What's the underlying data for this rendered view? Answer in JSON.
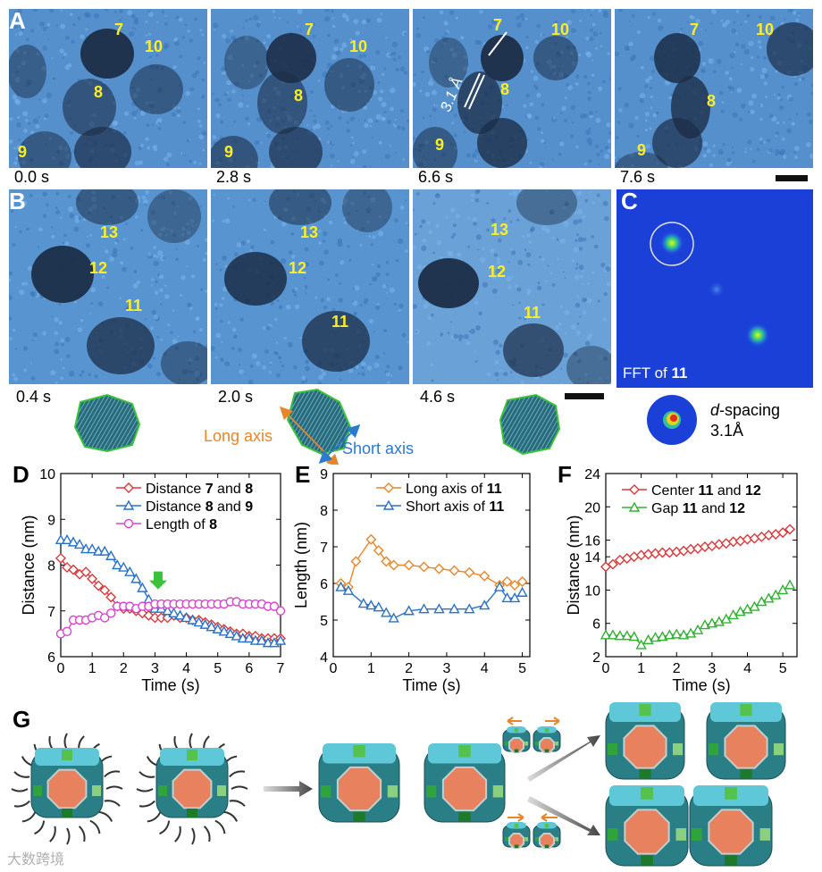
{
  "panel_a": {
    "letter": "A",
    "frames": [
      {
        "time": "0.0 s",
        "labels": [
          "7",
          "10",
          "8",
          "9"
        ]
      },
      {
        "time": "2.8 s",
        "labels": [
          "7",
          "10",
          "8",
          "9"
        ]
      },
      {
        "time": "6.6 s",
        "labels": [
          "7",
          "10",
          "8",
          "9"
        ],
        "lattice_label": "3.1 Å"
      },
      {
        "time": "7.6 s",
        "labels": [
          "7",
          "10",
          "8",
          "9"
        ]
      }
    ]
  },
  "panel_b": {
    "letter": "B",
    "frames": [
      {
        "time": "0.4 s",
        "labels": [
          "13",
          "12",
          "11"
        ]
      },
      {
        "time": "2.0 s",
        "labels": [
          "13",
          "12",
          "11"
        ]
      },
      {
        "time": "4.6 s",
        "labels": [
          "13",
          "12",
          "11"
        ]
      }
    ],
    "long_axis": "Long axis",
    "short_axis": "Short axis",
    "colors": {
      "long": "#e8862a",
      "short": "#2a7ad0"
    }
  },
  "panel_c": {
    "letter": "C",
    "fft_caption_prefix": "FFT of ",
    "fft_caption_particle": "11",
    "d_spacing_italic": "d",
    "d_spacing_rest": "-spacing",
    "d_spacing_value": "3.1Å"
  },
  "panel_d": {
    "letter": "D"
  },
  "panel_e": {
    "letter": "E"
  },
  "panel_f": {
    "letter": "F"
  },
  "panel_g": {
    "letter": "G"
  },
  "watermark": "大数跨境",
  "chart_data": [
    {
      "type": "line",
      "panel": "D",
      "xlabel": "Time (s)",
      "ylabel": "Distance (nm)",
      "xlim": [
        0,
        7
      ],
      "ylim": [
        6,
        10
      ],
      "xticks": [
        0,
        1,
        2,
        3,
        4,
        5,
        6,
        7
      ],
      "yticks": [
        6,
        7,
        8,
        9,
        10
      ],
      "series": [
        {
          "name": "Distance 7 and 8",
          "legend_pre": "Distance ",
          "legend_a": "7",
          "legend_mid": " and ",
          "legend_b": "8",
          "color": "#d8383a",
          "marker": "diamond",
          "x": [
            0,
            0.2,
            0.4,
            0.6,
            0.8,
            1.0,
            1.2,
            1.4,
            1.6,
            1.8,
            2.0,
            2.2,
            2.4,
            2.6,
            2.8,
            3.0,
            3.2,
            3.4,
            3.6,
            3.8,
            4.0,
            4.2,
            4.4,
            4.6,
            4.8,
            5.0,
            5.2,
            5.4,
            5.6,
            5.8,
            6.0,
            6.2,
            6.4,
            6.6,
            6.8,
            7.0
          ],
          "y": [
            8.15,
            7.95,
            7.9,
            7.8,
            7.85,
            7.7,
            7.55,
            7.45,
            7.3,
            7.1,
            7.05,
            7.05,
            7.0,
            6.95,
            6.9,
            6.85,
            6.85,
            6.85,
            6.9,
            6.85,
            6.85,
            6.8,
            6.8,
            6.75,
            6.7,
            6.65,
            6.6,
            6.55,
            6.5,
            6.5,
            6.45,
            6.45,
            6.4,
            6.4,
            6.4,
            6.4
          ]
        },
        {
          "name": "Distance 8 and 9",
          "legend_pre": "Distance ",
          "legend_a": "8",
          "legend_mid": " and ",
          "legend_b": "9",
          "color": "#2a72c8",
          "marker": "triangle",
          "x": [
            0,
            0.2,
            0.4,
            0.6,
            0.8,
            1.0,
            1.2,
            1.4,
            1.6,
            1.8,
            2.0,
            2.2,
            2.4,
            2.6,
            2.8,
            3.0,
            3.2,
            3.4,
            3.6,
            3.8,
            4.0,
            4.2,
            4.4,
            4.6,
            4.8,
            5.0,
            5.2,
            5.4,
            5.6,
            5.8,
            6.0,
            6.2,
            6.4,
            6.6,
            6.8,
            7.0
          ],
          "y": [
            8.55,
            8.55,
            8.5,
            8.45,
            8.35,
            8.35,
            8.3,
            8.3,
            8.2,
            8.0,
            7.95,
            7.85,
            7.7,
            7.5,
            7.25,
            7.05,
            7.05,
            7.0,
            6.95,
            6.9,
            6.85,
            6.8,
            6.75,
            6.7,
            6.65,
            6.6,
            6.55,
            6.5,
            6.45,
            6.4,
            6.4,
            6.35,
            6.35,
            6.3,
            6.3,
            6.35
          ]
        },
        {
          "name": "Length of 8",
          "legend_pre": "Length of ",
          "legend_a": "8",
          "legend_mid": "",
          "legend_b": "",
          "color": "#d844d0",
          "marker": "circle",
          "x": [
            0,
            0.2,
            0.4,
            0.6,
            0.8,
            1.0,
            1.2,
            1.4,
            1.6,
            1.8,
            2.0,
            2.2,
            2.4,
            2.6,
            2.8,
            3.0,
            3.2,
            3.4,
            3.6,
            3.8,
            4.0,
            4.2,
            4.4,
            4.6,
            4.8,
            5.0,
            5.2,
            5.4,
            5.6,
            5.8,
            6.0,
            6.2,
            6.4,
            6.6,
            6.8,
            7.0
          ],
          "y": [
            6.5,
            6.55,
            6.8,
            6.8,
            6.8,
            6.85,
            6.9,
            6.85,
            6.95,
            7.1,
            7.1,
            7.1,
            7.05,
            7.1,
            7.1,
            7.15,
            7.15,
            7.15,
            7.15,
            7.15,
            7.15,
            7.15,
            7.15,
            7.15,
            7.15,
            7.15,
            7.15,
            7.2,
            7.2,
            7.15,
            7.15,
            7.15,
            7.15,
            7.1,
            7.1,
            7.0
          ]
        }
      ],
      "annotation": {
        "type": "arrow",
        "x": 3.1,
        "y": 7.55,
        "color": "#3ac23a"
      }
    },
    {
      "type": "line",
      "panel": "E",
      "xlabel": "Time (s)",
      "ylabel": "Length (nm)",
      "xlim": [
        0,
        5.2
      ],
      "ylim": [
        4,
        9
      ],
      "xticks": [
        0,
        1,
        2,
        3,
        4,
        5
      ],
      "yticks": [
        4,
        5,
        6,
        7,
        8,
        9
      ],
      "series": [
        {
          "name": "Long axis of 11",
          "legend_pre": "Long axis of ",
          "legend_a": "11",
          "legend_mid": "",
          "legend_b": "",
          "color": "#e8862a",
          "marker": "diamond",
          "x": [
            0.2,
            0.4,
            0.6,
            1.0,
            1.2,
            1.4,
            1.6,
            2.0,
            2.4,
            2.8,
            3.2,
            3.6,
            4.0,
            4.4,
            4.6,
            4.8,
            5.0
          ],
          "y": [
            6.0,
            5.9,
            6.6,
            7.2,
            6.9,
            6.6,
            6.5,
            6.5,
            6.45,
            6.4,
            6.35,
            6.3,
            6.2,
            5.95,
            6.05,
            5.95,
            6.05
          ]
        },
        {
          "name": "Short axis of 11",
          "legend_pre": "Short axis of ",
          "legend_a": "11",
          "legend_mid": "",
          "legend_b": "",
          "color": "#2a72c8",
          "marker": "triangle",
          "x": [
            0.2,
            0.4,
            0.8,
            1.0,
            1.2,
            1.4,
            1.6,
            2.0,
            2.4,
            2.8,
            3.2,
            3.6,
            4.0,
            4.4,
            4.6,
            4.8,
            5.0
          ],
          "y": [
            5.9,
            5.8,
            5.45,
            5.4,
            5.35,
            5.2,
            5.05,
            5.25,
            5.3,
            5.3,
            5.3,
            5.3,
            5.4,
            5.9,
            5.6,
            5.6,
            5.75
          ]
        }
      ]
    },
    {
      "type": "line",
      "panel": "F",
      "xlabel": "Time (s)",
      "ylabel": "Distance (nm)",
      "xlim": [
        0,
        5.4
      ],
      "ylim": [
        2,
        24
      ],
      "xticks": [
        0,
        1,
        2,
        3,
        4,
        5
      ],
      "yticks": [
        2,
        6,
        10,
        14,
        16,
        20,
        24
      ],
      "series": [
        {
          "name": "Center 11 and 12",
          "legend_pre": "Center ",
          "legend_a": "11",
          "legend_mid": " and ",
          "legend_b": "12",
          "color": "#d8383a",
          "marker": "diamond",
          "x": [
            0.0,
            0.2,
            0.4,
            0.6,
            0.8,
            1.0,
            1.2,
            1.4,
            1.6,
            1.8,
            2.0,
            2.2,
            2.4,
            2.6,
            2.8,
            3.0,
            3.2,
            3.4,
            3.6,
            3.8,
            4.0,
            4.2,
            4.4,
            4.6,
            4.8,
            5.0,
            5.2
          ],
          "y": [
            12.8,
            13.1,
            13.6,
            13.8,
            14.0,
            14.2,
            14.3,
            14.4,
            14.5,
            14.5,
            14.6,
            14.7,
            14.9,
            15.0,
            15.2,
            15.3,
            15.5,
            15.6,
            15.8,
            15.9,
            16.1,
            16.2,
            16.4,
            16.6,
            16.7,
            16.9,
            17.3
          ]
        },
        {
          "name": "Gap 11 and 12",
          "legend_pre": "Gap ",
          "legend_a": "11",
          "legend_mid": " and ",
          "legend_b": "12",
          "color": "#32b032",
          "marker": "triangle",
          "x": [
            0.0,
            0.2,
            0.4,
            0.6,
            0.8,
            1.0,
            1.2,
            1.4,
            1.6,
            1.8,
            2.0,
            2.2,
            2.4,
            2.6,
            2.8,
            3.0,
            3.2,
            3.4,
            3.6,
            3.8,
            4.0,
            4.2,
            4.4,
            4.6,
            4.8,
            5.0,
            5.2
          ],
          "y": [
            4.6,
            4.6,
            4.5,
            4.5,
            4.4,
            3.4,
            4.0,
            4.3,
            4.4,
            4.6,
            4.7,
            4.6,
            4.8,
            5.2,
            5.8,
            6.0,
            6.2,
            6.5,
            7.0,
            7.4,
            7.7,
            8.0,
            8.6,
            9.0,
            9.4,
            10.0,
            10.6
          ]
        }
      ]
    }
  ]
}
